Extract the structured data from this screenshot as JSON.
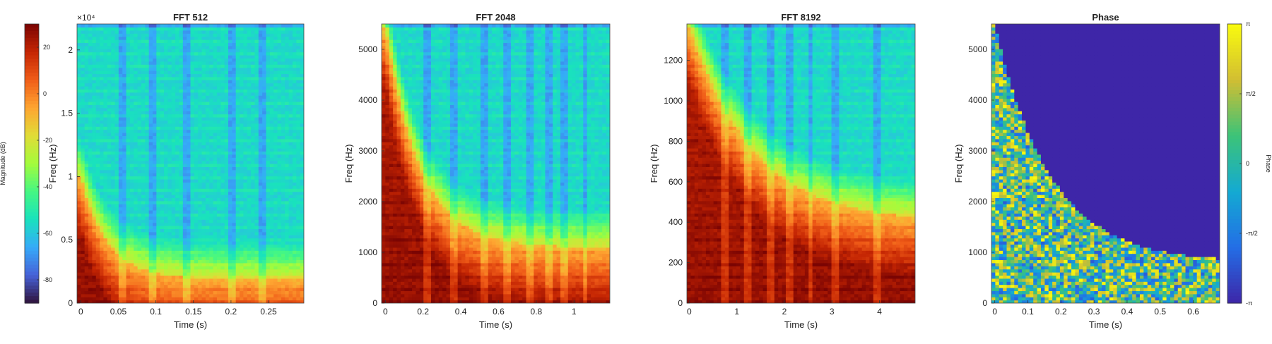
{
  "chart_data": [
    {
      "type": "heatmap",
      "title": "FFT 512",
      "xlabel": "Time (s)",
      "ylabel": "Freq (Hz)",
      "xlim": [
        -0.005,
        0.297
      ],
      "ylim": [
        0,
        22050
      ],
      "xticks": [
        0,
        0.05,
        0.1,
        0.15,
        0.2,
        0.25
      ],
      "xtick_labels": [
        "0",
        "0.05",
        "0.1",
        "0.15",
        "0.2",
        "0.25"
      ],
      "yticks": [
        0,
        5000,
        10000,
        15000,
        20000
      ],
      "ytick_labels": [
        "0",
        "0.5",
        "1",
        "1.5",
        "2"
      ],
      "y_exponent": "×10⁴",
      "decay": {
        "start": 10000,
        "floor": 1900,
        "rate": 28
      },
      "stripes": [
        0.057,
        0.097,
        0.14,
        0.203,
        0.24
      ],
      "value": "Magnitude (dB)"
    },
    {
      "type": "heatmap",
      "title": "FFT 2048",
      "xlabel": "Time (s)",
      "ylabel": "Freq (Hz)",
      "xlim": [
        -0.02,
        1.19
      ],
      "ylim": [
        0,
        5500
      ],
      "xticks": [
        0,
        0.2,
        0.4,
        0.6,
        0.8,
        1
      ],
      "xtick_labels": [
        "0",
        "0.2",
        "0.4",
        "0.6",
        "0.8",
        "1"
      ],
      "yticks": [
        0,
        1000,
        2000,
        3000,
        4000,
        5000
      ],
      "ytick_labels": [
        "0",
        "1000",
        "2000",
        "3000",
        "4000",
        "5000"
      ],
      "decay": {
        "start": 5500,
        "floor": 1100,
        "rate": 5.5
      },
      "stripes": [
        0.23,
        0.37,
        0.52,
        0.64,
        0.76,
        0.86,
        0.94,
        1.06
      ],
      "value": "Magnitude (dB)"
    },
    {
      "type": "heatmap",
      "title": "FFT 8192",
      "xlabel": "Time (s)",
      "ylabel": "Freq (Hz)",
      "xlim": [
        -0.05,
        4.75
      ],
      "ylim": [
        0,
        1380
      ],
      "xticks": [
        0,
        1,
        2,
        3,
        4
      ],
      "xtick_labels": [
        "0",
        "1",
        "2",
        "3",
        "4"
      ],
      "yticks": [
        0,
        200,
        400,
        600,
        800,
        1000,
        1200
      ],
      "ytick_labels": [
        "0",
        "200",
        "400",
        "600",
        "800",
        "1000",
        "1200"
      ],
      "decay": {
        "start": 1380,
        "floor": 400,
        "rate": 0.75
      },
      "stripes": [
        0.75,
        1.2,
        1.7,
        2.1,
        2.55,
        3.1,
        3.95
      ],
      "value": "Magnitude (dB)"
    },
    {
      "type": "heatmap",
      "title": "Phase",
      "xlabel": "Time (s)",
      "ylabel": "Freq (Hz)",
      "xlim": [
        -0.01,
        0.68
      ],
      "ylim": [
        0,
        5500
      ],
      "xticks": [
        0,
        0.1,
        0.2,
        0.3,
        0.4,
        0.5,
        0.6
      ],
      "xtick_labels": [
        "0",
        "0.1",
        "0.2",
        "0.3",
        "0.4",
        "0.5",
        "0.6"
      ],
      "yticks": [
        0,
        1000,
        2000,
        3000,
        4000,
        5000
      ],
      "ytick_labels": [
        "0",
        "1000",
        "2000",
        "3000",
        "4000",
        "5000"
      ],
      "boundary": {
        "start": 5500,
        "floor": 800,
        "rate": 6
      },
      "value": "Phase"
    }
  ],
  "colorbars": {
    "magnitude": {
      "label": "Magnitude (dB)",
      "range": [
        -90,
        30
      ],
      "ticks": [
        20,
        0,
        -20,
        -40,
        -60,
        -80
      ],
      "tick_labels": [
        "20",
        "0",
        "-20",
        "-40",
        "-60",
        "-80"
      ],
      "colormap": "turbo"
    },
    "phase": {
      "label": "Phase",
      "range": [
        -3.1416,
        3.1416
      ],
      "ticks": [
        3.1416,
        1.5708,
        0,
        -1.5708,
        -3.1416
      ],
      "tick_labels": [
        "π",
        "π/2",
        "0",
        "-π/2",
        "-π"
      ],
      "colormap": "parula"
    }
  }
}
